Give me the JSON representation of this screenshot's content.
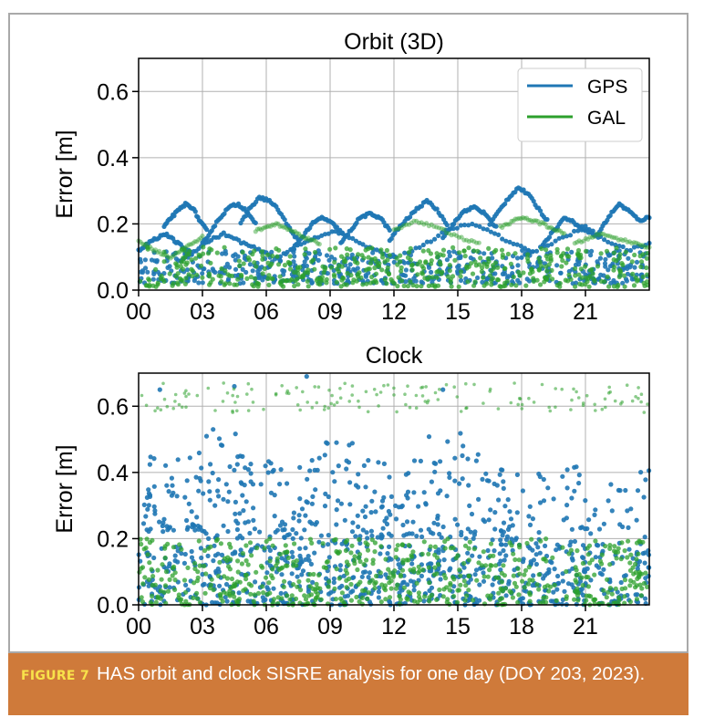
{
  "caption": {
    "label": "FIGURE 7",
    "text": "HAS orbit and clock SISRE analysis for one day (DOY 203, 2023)."
  },
  "chart_data": [
    {
      "type": "scatter",
      "title": "Orbit (3D)",
      "xlabel": "",
      "ylabel": "Error [m]",
      "x_ticks": [
        "00",
        "03",
        "06",
        "09",
        "12",
        "15",
        "18",
        "21"
      ],
      "x_range_hours": [
        0,
        24
      ],
      "y_ticks": [
        "0.0",
        "0.2",
        "0.4",
        "0.6"
      ],
      "ylim": [
        0,
        0.7
      ],
      "grid": true,
      "legend": {
        "position": "top-right",
        "entries": [
          {
            "name": "GPS",
            "color": "#1f77b4"
          },
          {
            "name": "GAL",
            "color": "#2ca02c"
          }
        ]
      },
      "series": [
        {
          "name": "GPS",
          "color": "#1f77b4",
          "band": {
            "min": 0.02,
            "max": 0.12
          },
          "tracks": [
            {
              "from": 1.2,
              "to": 3.2,
              "values": [
                0.19,
                0.22,
                0.24,
                0.26,
                0.25,
                0.21,
                0.18
              ]
            },
            {
              "from": 3.0,
              "to": 5.5,
              "values": [
                0.14,
                0.18,
                0.22,
                0.25,
                0.26,
                0.24,
                0.2
              ]
            },
            {
              "from": 4.8,
              "to": 7.5,
              "values": [
                0.2,
                0.25,
                0.28,
                0.27,
                0.24,
                0.19,
                0.15
              ]
            },
            {
              "from": 7.2,
              "to": 9.6,
              "values": [
                0.12,
                0.16,
                0.2,
                0.22,
                0.2,
                0.17
              ]
            },
            {
              "from": 9.5,
              "to": 11.8,
              "values": [
                0.14,
                0.18,
                0.22,
                0.23,
                0.22,
                0.18
              ]
            },
            {
              "from": 11.8,
              "to": 14.5,
              "values": [
                0.15,
                0.19,
                0.22,
                0.25,
                0.27,
                0.24,
                0.2
              ]
            },
            {
              "from": 14.3,
              "to": 16.8,
              "values": [
                0.16,
                0.2,
                0.24,
                0.25,
                0.23,
                0.19
              ]
            },
            {
              "from": 16.5,
              "to": 19.2,
              "values": [
                0.2,
                0.24,
                0.28,
                0.31,
                0.29,
                0.25,
                0.21
              ]
            },
            {
              "from": 19.0,
              "to": 21.6,
              "values": [
                0.14,
                0.18,
                0.22,
                0.2,
                0.18,
                0.16
              ]
            },
            {
              "from": 21.6,
              "to": 24.0,
              "values": [
                0.17,
                0.22,
                0.26,
                0.24,
                0.21,
                0.22
              ]
            },
            {
              "from": 0.0,
              "to": 2.5,
              "values": [
                0.12,
                0.15,
                0.17,
                0.14,
                0.11
              ]
            },
            {
              "from": 2.0,
              "to": 6.0,
              "values": [
                0.09,
                0.12,
                0.15,
                0.17,
                0.15,
                0.13,
                0.11
              ]
            },
            {
              "from": 6.5,
              "to": 12.0,
              "values": [
                0.1,
                0.13,
                0.16,
                0.18,
                0.15,
                0.12,
                0.1
              ]
            },
            {
              "from": 12.5,
              "to": 18.5,
              "values": [
                0.11,
                0.14,
                0.18,
                0.2,
                0.18,
                0.14,
                0.12
              ]
            },
            {
              "from": 18.0,
              "to": 24.0,
              "values": [
                0.1,
                0.13,
                0.16,
                0.19,
                0.15,
                0.12,
                0.14
              ]
            }
          ]
        },
        {
          "name": "GAL",
          "color": "#2ca02c",
          "band": {
            "min": 0.01,
            "max": 0.13
          },
          "tracks": [
            {
              "from": 0.0,
              "to": 3.0,
              "values": [
                0.15,
                0.12,
                0.1,
                0.13,
                0.16
              ]
            },
            {
              "from": 5.5,
              "to": 8.5,
              "values": [
                0.18,
                0.2,
                0.17,
                0.14
              ]
            },
            {
              "from": 12.0,
              "to": 16.0,
              "values": [
                0.18,
                0.21,
                0.19,
                0.16,
                0.14
              ]
            },
            {
              "from": 17.0,
              "to": 20.0,
              "values": [
                0.19,
                0.22,
                0.2,
                0.17
              ]
            },
            {
              "from": 20.5,
              "to": 24.0,
              "values": [
                0.14,
                0.17,
                0.15,
                0.13
              ]
            }
          ]
        }
      ]
    },
    {
      "type": "scatter",
      "title": "Clock",
      "xlabel": "",
      "ylabel": "Error [m]",
      "x_ticks": [
        "00",
        "03",
        "06",
        "09",
        "12",
        "15",
        "18",
        "21"
      ],
      "x_range_hours": [
        0,
        24
      ],
      "y_ticks": [
        "0.0",
        "0.2",
        "0.4",
        "0.6"
      ],
      "ylim": [
        0,
        0.7
      ],
      "grid": true,
      "series": [
        {
          "name": "GPS",
          "color": "#1f77b4",
          "band": {
            "min": 0.0,
            "max": 0.18
          },
          "clusters": [
            {
              "from": 0.2,
              "to": 2.8,
              "y_min": 0.22,
              "y_max": 0.45
            },
            {
              "from": 2.8,
              "to": 5.0,
              "y_min": 0.2,
              "y_max": 0.54
            },
            {
              "from": 5.0,
              "to": 8.0,
              "y_min": 0.2,
              "y_max": 0.45
            },
            {
              "from": 8.0,
              "to": 10.5,
              "y_min": 0.18,
              "y_max": 0.5
            },
            {
              "from": 10.5,
              "to": 13.0,
              "y_min": 0.2,
              "y_max": 0.44
            },
            {
              "from": 13.0,
              "to": 16.0,
              "y_min": 0.2,
              "y_max": 0.52
            },
            {
              "from": 16.0,
              "to": 19.0,
              "y_min": 0.18,
              "y_max": 0.42
            },
            {
              "from": 19.0,
              "to": 24.0,
              "y_min": 0.18,
              "y_max": 0.42
            }
          ],
          "outliers": [
            [
              1.0,
              0.65
            ],
            [
              4.5,
              0.66
            ],
            [
              7.9,
              0.69
            ],
            [
              14.3,
              0.65
            ],
            [
              9.3,
              0.49
            ],
            [
              3.5,
              0.53
            ]
          ]
        },
        {
          "name": "GAL",
          "color": "#2ca02c",
          "band": {
            "min": 0.0,
            "max": 0.2
          },
          "upper_band": {
            "from": 0.0,
            "to": 24.0,
            "y_min": 0.58,
            "y_max": 0.67
          }
        }
      ]
    }
  ]
}
